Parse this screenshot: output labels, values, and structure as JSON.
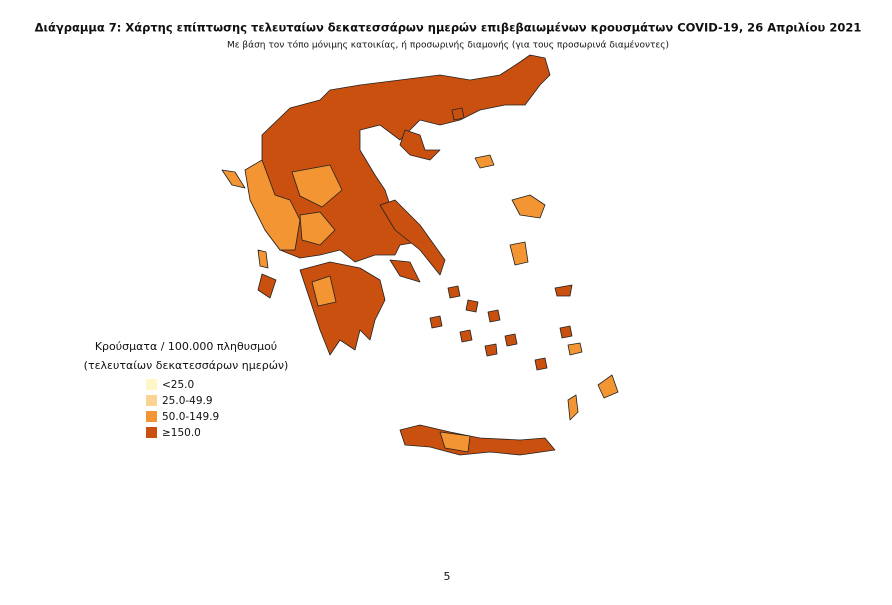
{
  "title": "Διάγραμμα 7: Χάρτης επίπτωσης τελευταίων δεκατεσσάρων ημερών επιβεβαιωμένων κρουσμάτων COVID-19, 26 Απριλίου 2021",
  "subtitle": "Με βάση τον τόπο μόνιμης κατοικίας, ή προσωρινής διαμονής (για τους προσωρινά διαμένοντες)",
  "legend": {
    "title": [
      "Κρούσματα / 100.000 πληθυσμού",
      "(τελευταίων δεκατεσσάρων ημερών)"
    ],
    "items": [
      {
        "label": "<25.0",
        "color": "#fff7c8"
      },
      {
        "label": "25.0-49.9",
        "color": "#fbd393"
      },
      {
        "label": "50.0-149.9",
        "color": "#f39533"
      },
      {
        "label": "≥150.0",
        "color": "#c9500f"
      }
    ]
  },
  "page_number": "5"
}
